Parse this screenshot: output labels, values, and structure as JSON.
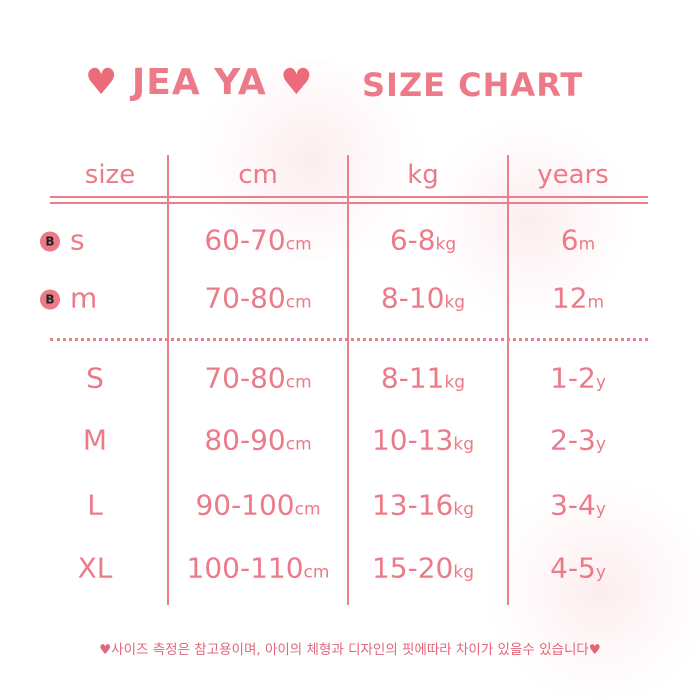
{
  "title": {
    "brand": "JEA YA",
    "chart": "SIZE CHART",
    "heart": "♥"
  },
  "headers": [
    "size",
    "cm",
    "kg",
    "years"
  ],
  "baby_rows": [
    {
      "badge": "B",
      "size": "s",
      "cm": "60-70",
      "cm_unit": "cm",
      "kg": "6-8",
      "kg_unit": "kg",
      "age": "6",
      "age_unit": "m"
    },
    {
      "badge": "B",
      "size": "m",
      "cm": "70-80",
      "cm_unit": "cm",
      "kg": "8-10",
      "kg_unit": "kg",
      "age": "12",
      "age_unit": "m"
    }
  ],
  "rows": [
    {
      "size": "S",
      "cm": "70-80",
      "cm_unit": "cm",
      "kg": "8-11",
      "kg_unit": "kg",
      "age": "1-2",
      "age_unit": "y"
    },
    {
      "size": "M",
      "cm": "80-90",
      "cm_unit": "cm",
      "kg": "10-13",
      "kg_unit": "kg",
      "age": "2-3",
      "age_unit": "y"
    },
    {
      "size": "L",
      "cm": "90-100",
      "cm_unit": "cm",
      "kg": "13-16",
      "kg_unit": "kg",
      "age": "3-4",
      "age_unit": "y"
    },
    {
      "size": "XL",
      "cm": "100-110",
      "cm_unit": "cm",
      "kg": "15-20",
      "kg_unit": "kg",
      "age": "4-5",
      "age_unit": "y"
    }
  ],
  "note": "♥사이즈 측정은 참고용이며, 아이의 체형과 디자인의 핏에따라 차이가 있을수 있습니다♥"
}
